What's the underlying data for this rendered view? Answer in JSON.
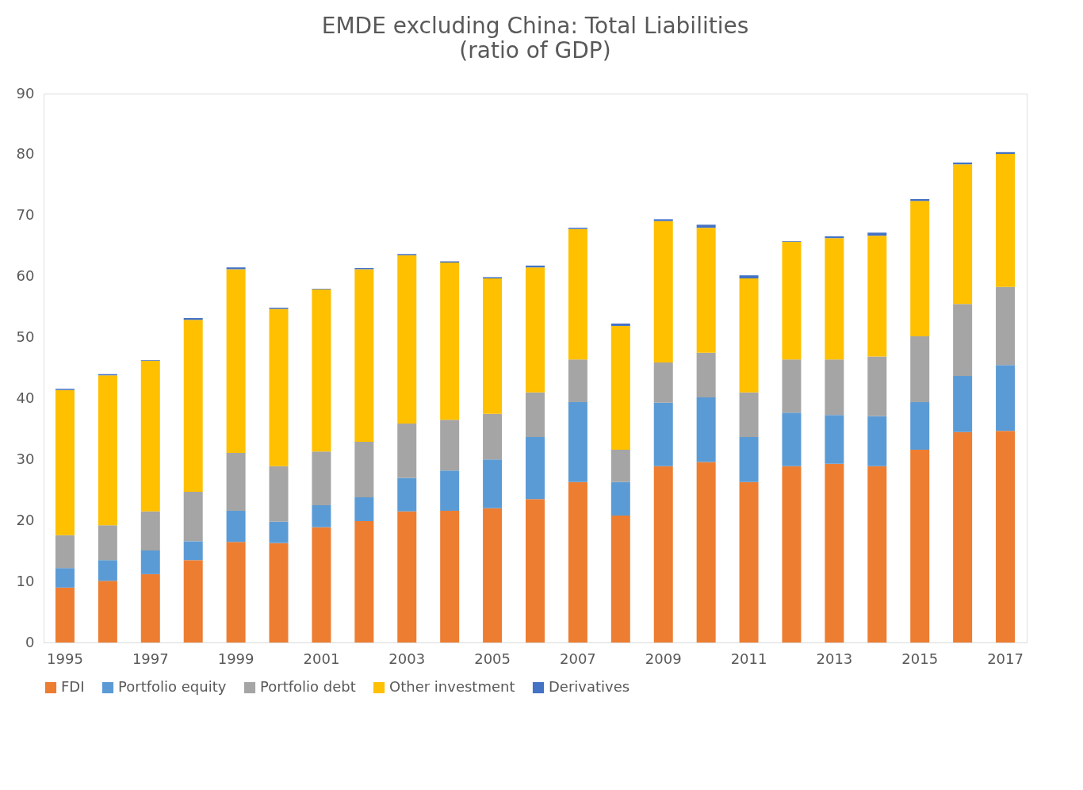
{
  "chart_data": {
    "type": "bar",
    "title": "EMDE excluding China: Total Liabilities",
    "subtitle": "(ratio of GDP)",
    "categories": [
      "1995",
      null,
      "1997",
      null,
      "1999",
      null,
      "2001",
      null,
      "2003",
      null,
      "2005",
      null,
      "2007",
      null,
      "2009",
      null,
      "2011",
      null,
      "2013",
      null,
      "2015",
      null,
      "2017"
    ],
    "stacked": true,
    "series": [
      {
        "name": "FDI",
        "color": "#ed7d31",
        "values": [
          9.0,
          10.1,
          11.2,
          13.5,
          16.5,
          16.3,
          18.9,
          19.9,
          21.5,
          21.6,
          22.0,
          23.5,
          26.3,
          20.8,
          28.9,
          29.6,
          26.3,
          28.9,
          29.3,
          28.9,
          31.6,
          34.5,
          34.7
        ]
      },
      {
        "name": "Portfolio equity",
        "color": "#5b9bd5",
        "values": [
          3.2,
          3.4,
          3.9,
          3.1,
          5.1,
          3.5,
          3.6,
          3.9,
          5.5,
          6.6,
          8.0,
          10.2,
          13.1,
          5.5,
          10.4,
          10.6,
          7.4,
          8.8,
          8.0,
          8.2,
          7.8,
          9.2,
          10.8
        ]
      },
      {
        "name": "Portfolio debt",
        "color": "#a5a5a5",
        "values": [
          5.4,
          5.7,
          6.4,
          8.1,
          9.5,
          9.1,
          8.8,
          9.1,
          8.9,
          8.3,
          7.5,
          7.3,
          7.0,
          5.3,
          6.6,
          7.3,
          7.3,
          8.7,
          9.1,
          9.8,
          10.8,
          11.8,
          12.8
        ]
      },
      {
        "name": "Other investment",
        "color": "#ffc000",
        "values": [
          23.8,
          24.6,
          24.7,
          28.2,
          30.1,
          25.8,
          26.6,
          28.3,
          27.6,
          25.8,
          22.2,
          20.5,
          21.4,
          20.3,
          23.2,
          20.5,
          18.7,
          19.3,
          19.9,
          19.8,
          22.2,
          22.9,
          21.8
        ]
      },
      {
        "name": "Derivatives",
        "color": "#4472c4",
        "values": [
          0.2,
          0.2,
          0.1,
          0.3,
          0.3,
          0.2,
          0.1,
          0.2,
          0.2,
          0.2,
          0.2,
          0.3,
          0.2,
          0.4,
          0.3,
          0.5,
          0.5,
          0.1,
          0.3,
          0.5,
          0.3,
          0.3,
          0.3
        ]
      }
    ],
    "ylim": [
      0,
      90
    ],
    "yticks": [
      0,
      10,
      20,
      30,
      40,
      50,
      60,
      70,
      80,
      90
    ],
    "grid": false,
    "legend": "bottom"
  }
}
